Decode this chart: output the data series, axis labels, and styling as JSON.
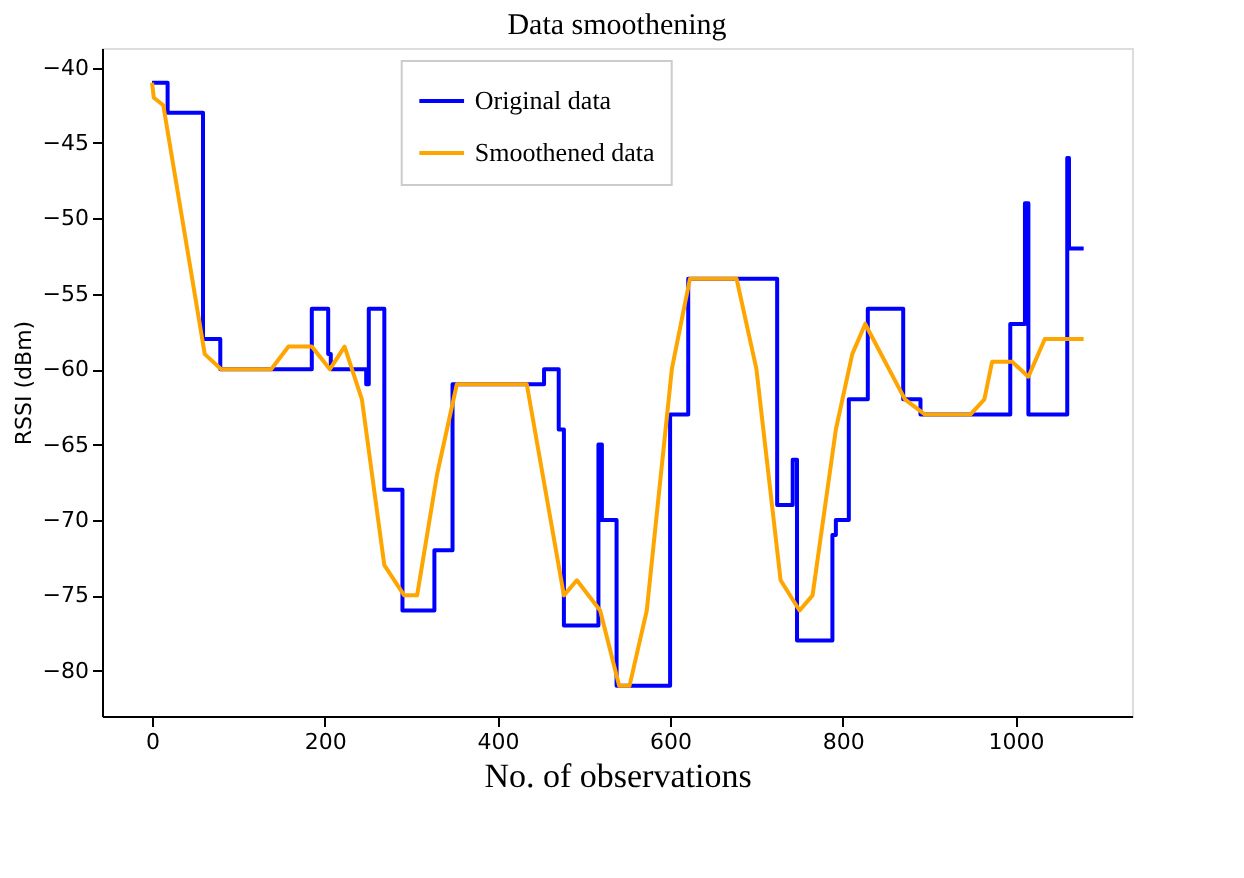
{
  "chart_data": {
    "type": "line",
    "title": "Data smoothening",
    "xlabel": "No. of observations",
    "ylabel": "RSSI (dBm)",
    "series": [
      {
        "name": "Original data",
        "type": "step",
        "color": "#0000ff",
        "x": [
          0,
          18,
          59,
          79,
          185,
          204,
          207,
          248,
          251,
          269,
          290,
          327,
          348,
          454,
          471,
          477,
          517,
          521,
          538,
          600,
          621,
          724,
          742,
          747,
          788,
          792,
          807,
          829,
          870,
          890,
          994,
          1011,
          1015,
          1060,
          1062,
          1079
        ],
        "values": [
          -41,
          -43,
          -58,
          -60,
          -56,
          -59,
          -60,
          -61,
          -56,
          -68,
          -76,
          -72,
          -61,
          -60,
          -64,
          -77,
          -65,
          -70,
          -81,
          -63,
          -54,
          -69,
          -66,
          -78,
          -71,
          -70,
          -62,
          -56,
          -62,
          -63,
          -57,
          -49,
          -63,
          -46,
          -52,
          -52
        ]
      },
      {
        "name": "Smoothened data",
        "type": "line",
        "color": "#ffa500",
        "x": [
          0,
          2,
          13,
          61,
          80,
          138,
          158,
          185,
          206,
          223,
          243,
          269,
          292,
          307,
          330,
          353,
          424,
          434,
          477,
          492,
          519,
          541,
          553,
          573,
          602,
          623,
          677,
          700,
          728,
          750,
          765,
          792,
          811,
          826,
          872,
          895,
          948,
          964,
          973,
          996,
          1015,
          1034,
          1079
        ],
        "values": [
          -41,
          -42,
          -42.5,
          -59,
          -60,
          -60,
          -58.5,
          -58.5,
          -60,
          -58.5,
          -62,
          -73,
          -75,
          -75,
          -67,
          -61,
          -61,
          -61,
          -75,
          -74,
          -76,
          -81,
          -81,
          -76,
          -60,
          -54,
          -54,
          -60,
          -74,
          -76,
          -75,
          -64,
          -59,
          -57,
          -62,
          -63,
          -63,
          -62,
          -59.5,
          -59.5,
          -60.5,
          -58,
          -58
        ]
      }
    ],
    "xlim": [
      -58,
      1135
    ],
    "xticks": [
      0,
      200,
      400,
      600,
      800,
      1000
    ],
    "ylim": [
      -83,
      -38.7
    ],
    "yticks": [
      -40,
      -45,
      -50,
      -55,
      -60,
      -65,
      -70,
      -75,
      -80
    ],
    "grid": false,
    "legend": "top"
  }
}
